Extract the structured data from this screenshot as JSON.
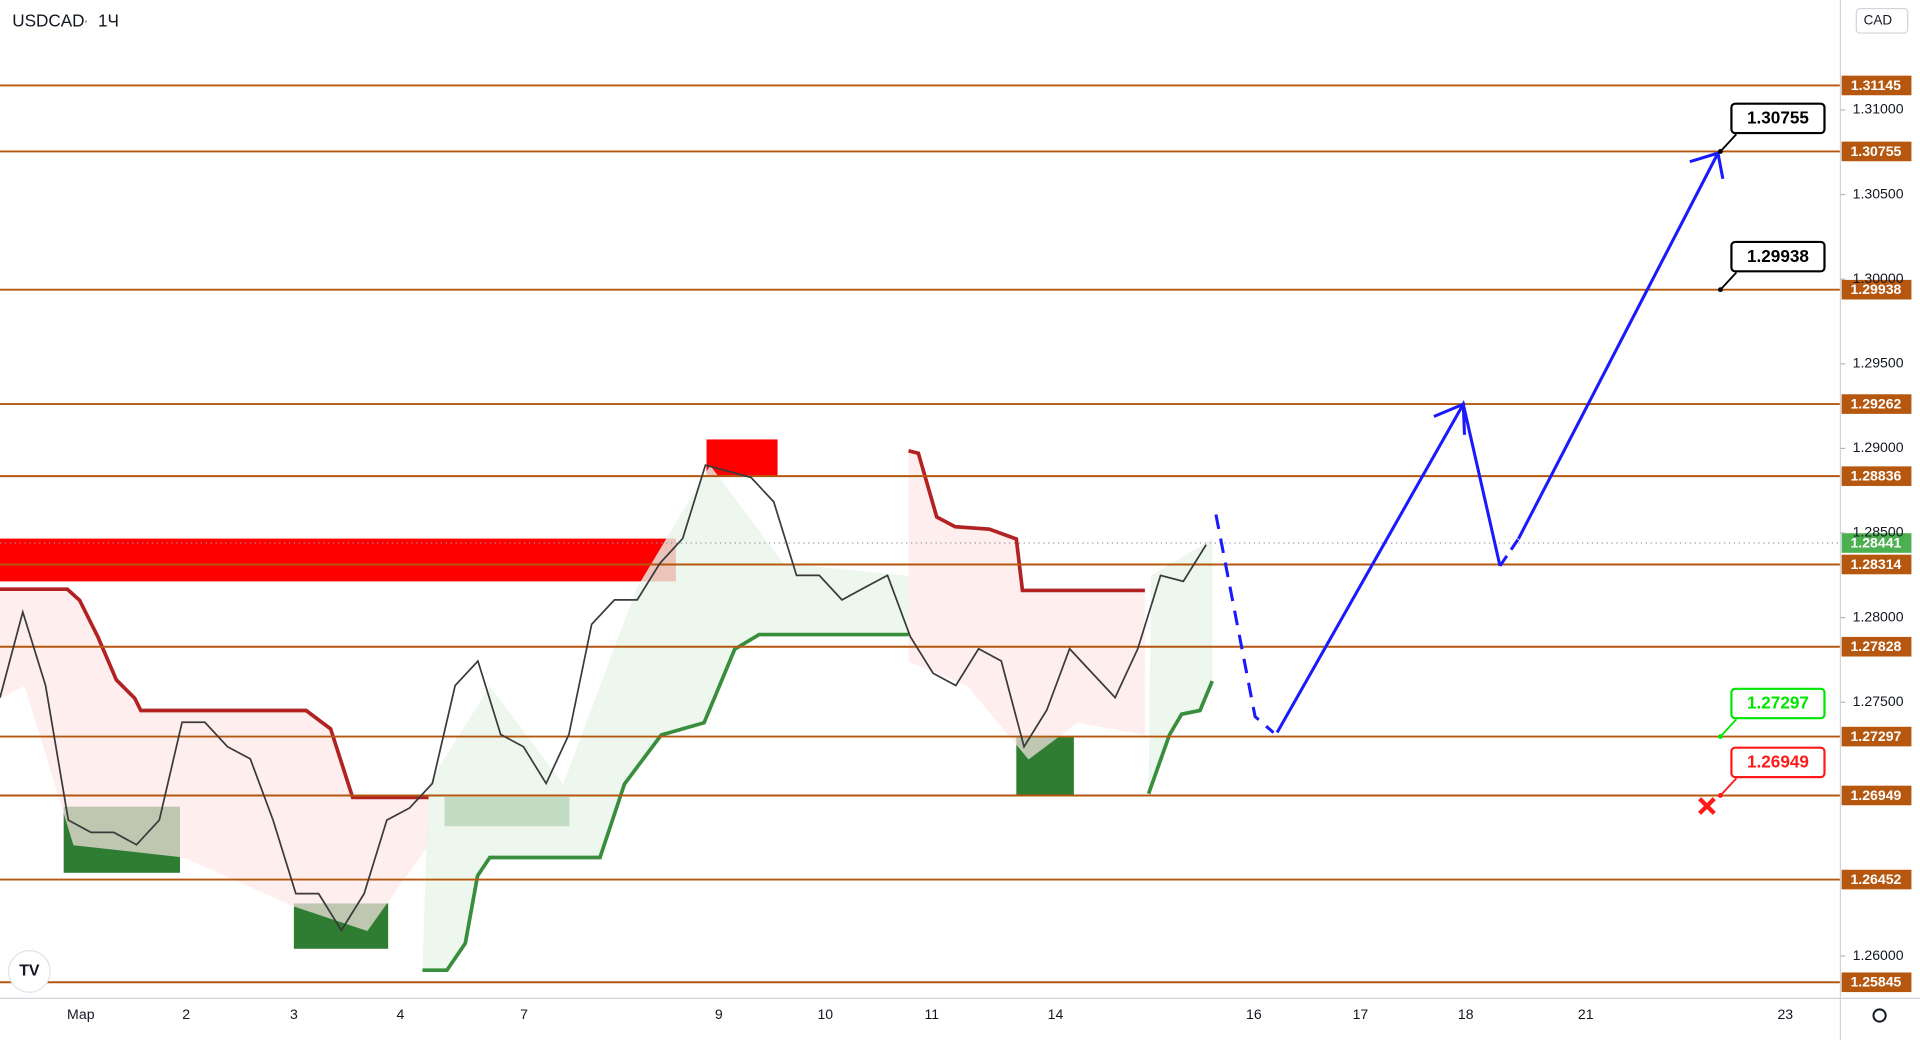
{
  "chart_data": {
    "type": "price-levels",
    "symbol": "USDCAD",
    "interval": "1Ч",
    "currency": "CAD",
    "ylim": [
      1.2575,
      1.3165
    ],
    "yticks": [
      {
        "value": 1.26,
        "label": "1.26000"
      },
      {
        "value": 1.275,
        "label": "1.27500"
      },
      {
        "value": 1.28,
        "label": "1.28000"
      },
      {
        "value": 1.285,
        "label": "1.28500"
      },
      {
        "value": 1.29,
        "label": "1.29000"
      },
      {
        "value": 1.295,
        "label": "1.29500"
      },
      {
        "value": 1.3,
        "label": "1.30000"
      },
      {
        "value": 1.305,
        "label": "1.30500"
      },
      {
        "value": 1.31,
        "label": "1.31000"
      }
    ],
    "x_labels": [
      "Мар",
      "2",
      "3",
      "4",
      "7",
      "9",
      "10",
      "11",
      "14",
      "16",
      "17",
      "18",
      "21",
      "23"
    ],
    "levels": {
      "color": "#b5570f",
      "values": [
        1.31145,
        1.30755,
        1.29938,
        1.29262,
        1.28836,
        1.28314,
        1.27828,
        1.27297,
        1.26949,
        1.26452,
        1.25845
      ]
    },
    "last_price": {
      "value": 1.28441,
      "color": "#4caf50"
    },
    "price": {
      "color": "#3a3a3a",
      "values": [
        1.27527,
        1.28033,
        1.27599,
        1.26803,
        1.26731,
        1.26731,
        1.26658,
        1.26803,
        1.27382,
        1.27382,
        1.27237,
        1.27165,
        1.26803,
        1.26369,
        1.26369,
        1.26152,
        1.26369,
        1.26803,
        1.26875,
        1.2702,
        1.27599,
        1.27744,
        1.27309,
        1.27237,
        1.2702,
        1.27309,
        1.27961,
        1.28105,
        1.28105,
        1.28322,
        1.28467,
        1.28901,
        1.28865,
        1.28829,
        1.28684,
        1.2825,
        1.2825,
        1.28105,
        1.28178,
        1.2825,
        1.27888,
        1.27671,
        1.27599,
        1.27816,
        1.27744,
        1.27237,
        1.27454,
        1.27816,
        1.27671,
        1.27527,
        1.27816,
        1.2825,
        1.28214,
        1.28431
      ]
    },
    "zones": [
      {
        "color": "#ff0000",
        "range": [
          1.28214,
          1.28467
        ]
      },
      {
        "color": "#ff0000",
        "range": [
          1.28836,
          1.29053
        ]
      },
      {
        "color": "#2e7d32",
        "range": [
          1.26492,
          1.26883
        ]
      },
      {
        "color": "#2e7d32",
        "range": [
          1.26043,
          1.26311
        ]
      },
      {
        "color": "#2e7d32",
        "range": [
          1.26767,
          1.2694
        ]
      },
      {
        "color": "#2e7d32",
        "range": [
          1.26948,
          1.27295
        ]
      }
    ],
    "annotations": [
      {
        "value": 1.30755,
        "color": "#000000"
      },
      {
        "value": 1.29938,
        "color": "#000000"
      },
      {
        "value": 1.27297,
        "color": "#00e600"
      },
      {
        "value": 1.26949,
        "color": "#ff1a1a"
      }
    ]
  }
}
